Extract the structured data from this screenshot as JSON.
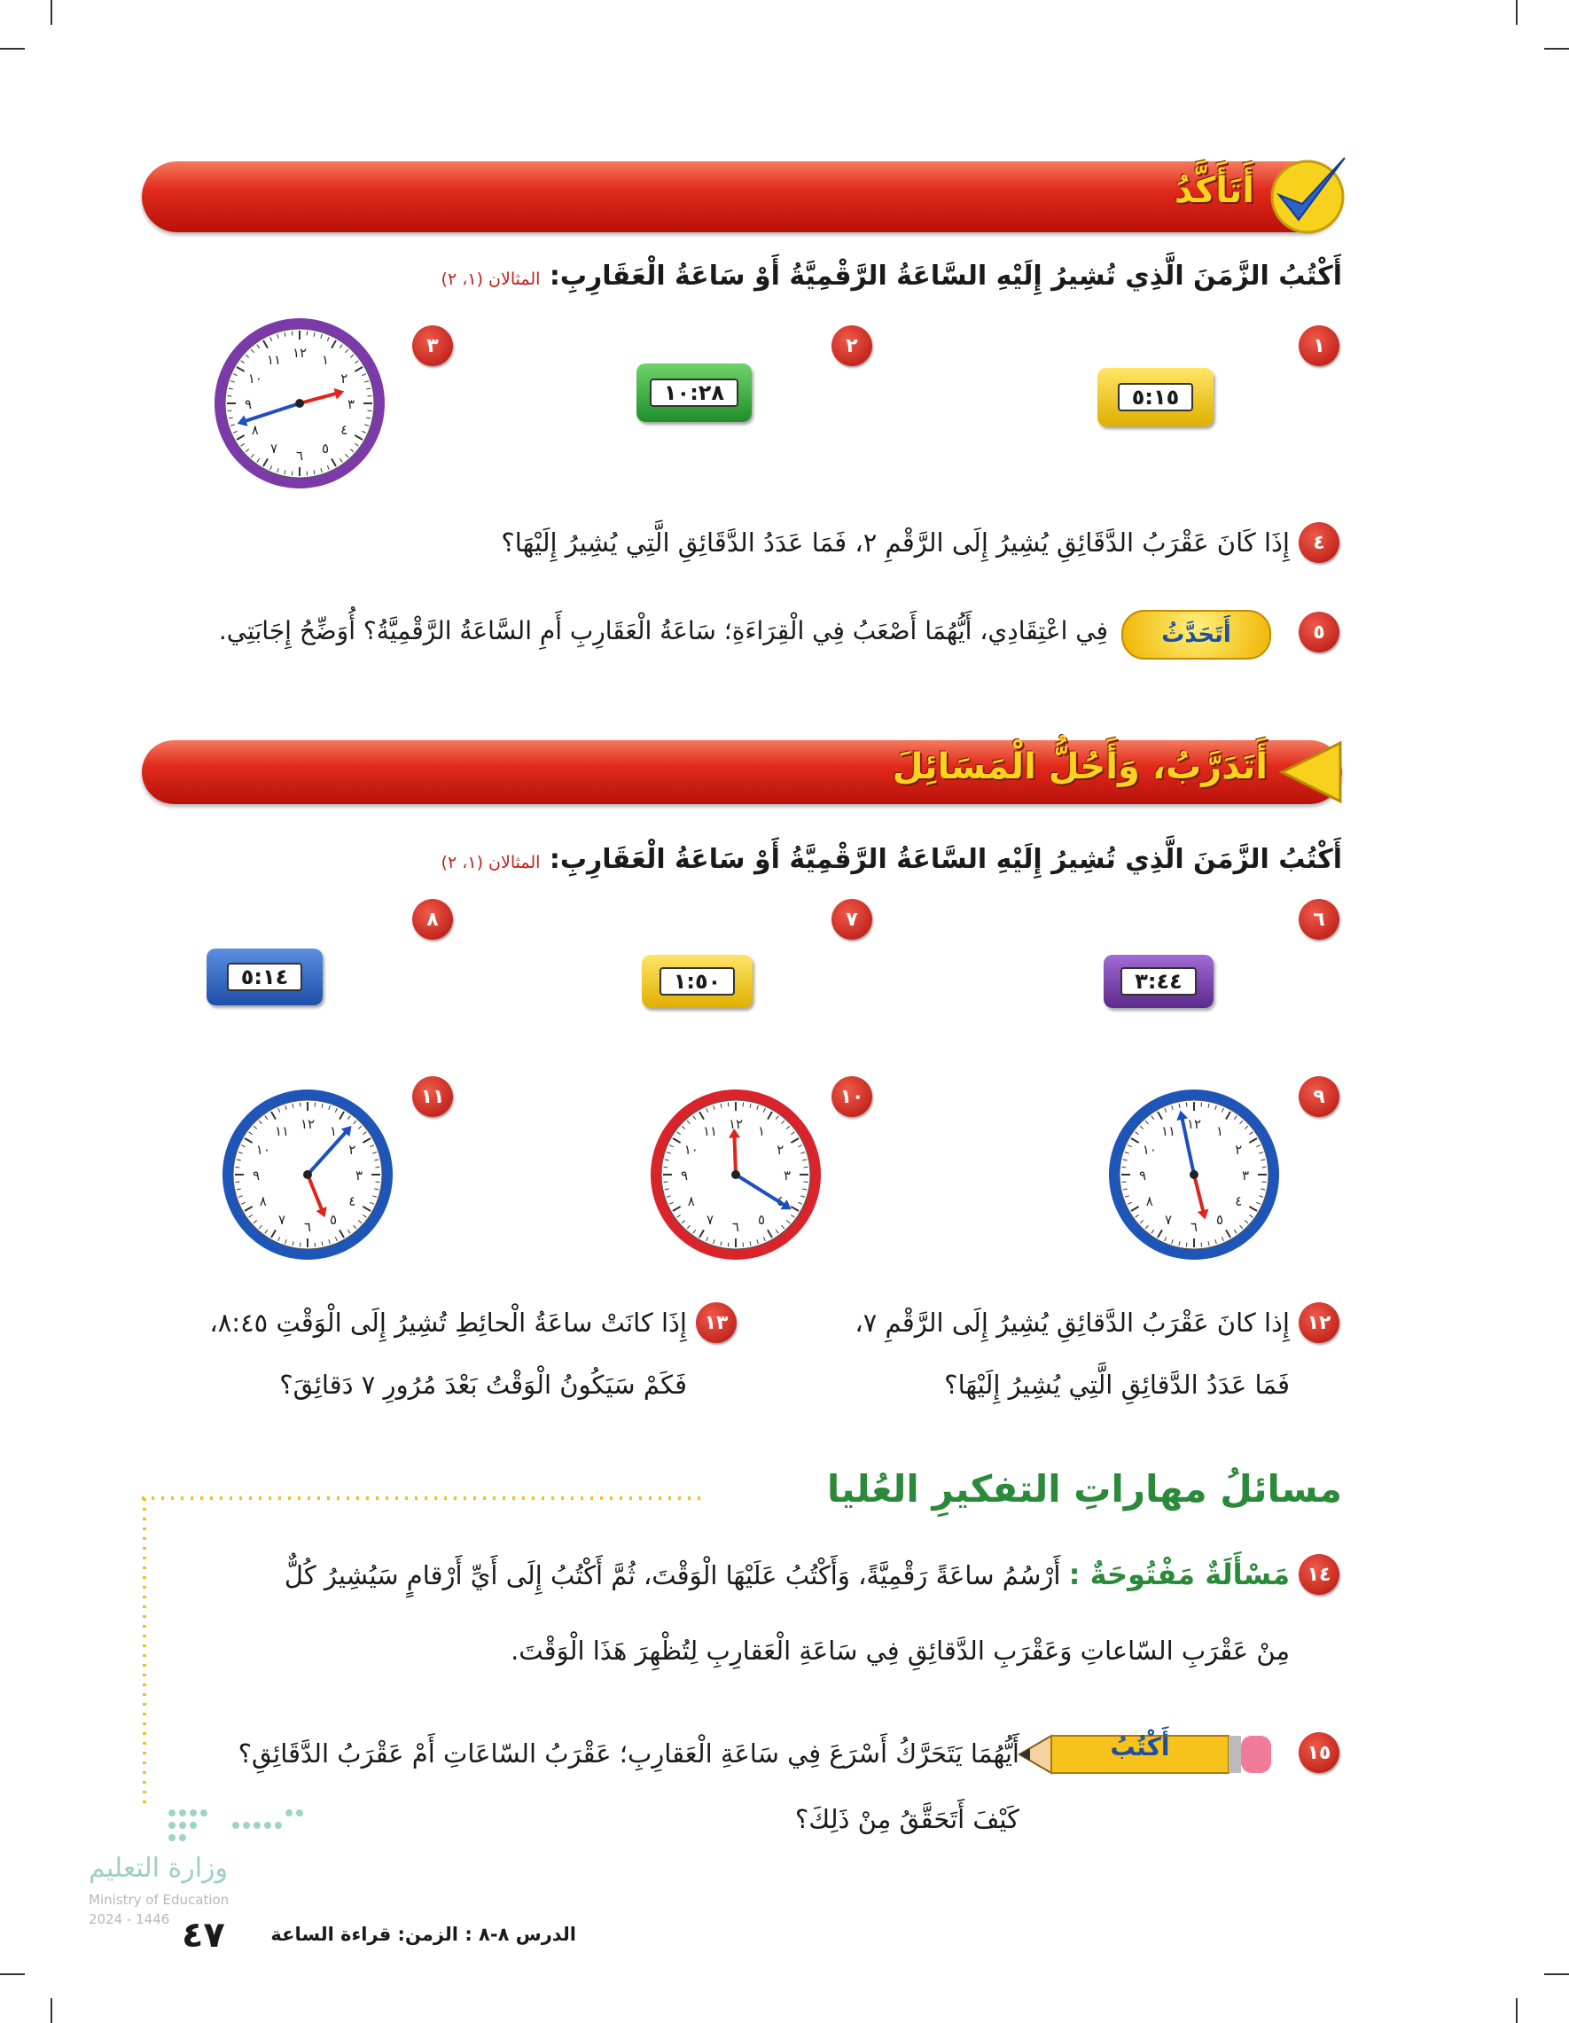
{
  "check": {
    "title": "أَتَأَكَّدُ",
    "instruction": "أَكْتُبُ الزَّمَنَ الَّذِي تُشِيرُ إِلَيْهِ السَّاعَةُ الرَّقْمِيَّةُ أَوْ سَاعَةُ الْعَقَارِبِ:",
    "reference": "المثالان (١، ٢)",
    "problems": [
      {
        "number": "١",
        "clock": "٥:١٥"
      },
      {
        "number": "٢",
        "clock": "١٠:٢٨"
      },
      {
        "number": "٣"
      }
    ],
    "q4": {
      "number": "٤",
      "text": "إِذَا كَانَ عَقْرَبُ الدَّقَائِقِ يُشِيرُ إِلَى الرَّقْمِ ٢، فَمَا عَدَدُ الدَّقَائِقِ الَّتِي يُشِيرُ إِلَيْهَا؟"
    },
    "q5": {
      "number": "٥",
      "tag": "أَتَحَدَّثُ",
      "text": "فِي اعْتِقَادِي، أَيُّهُمَا أَصْعَبُ فِي الْقِرَاءَةِ؛ سَاعَةُ الْعَقَارِبِ أَمِ السَّاعَةُ الرَّقْمِيَّةُ؟ أُوَضِّحُ إِجَابَتِي."
    }
  },
  "practice": {
    "title": "أَتَدَرَّبُ، وَأَحُلُّ الْمَسَائِلَ",
    "instruction": "أَكْتُبُ الزَّمَنَ الَّذِي تُشِيرُ إِلَيْهِ السَّاعَةُ الرَّقْمِيَّةُ أَوْ سَاعَةُ الْعَقَارِبِ:",
    "reference": "المثالان (١، ٢)",
    "problems": [
      {
        "number": "٦",
        "clock": "٣:٤٤"
      },
      {
        "number": "٧",
        "clock": "١:٥٠"
      },
      {
        "number": "٨",
        "clock": "٥:١٤"
      },
      {
        "number": "٩"
      },
      {
        "number": "١٠"
      },
      {
        "number": "١١"
      }
    ],
    "q12": {
      "number": "١٢",
      "lines": [
        "إِذا كانَ عَقْرَبُ الدَّقائِقِ يُشِيرُ إِلَى الرَّقْمِ ٧،",
        "فَمَا عَدَدُ الدَّقائِقِ الَّتِي يُشِيرُ إِلَيْهَا؟"
      ]
    },
    "q13": {
      "number": "١٣",
      "lines": [
        "إِذَا كانَتْ ساعَةُ الْحائِطِ تُشِيرُ إِلَى الْوَقْتِ ٨:٤٥،",
        "فَكَمْ سَيَكُونُ الْوَقْتُ بَعْدَ مُرُورِ ٧ دَقائِقَ؟"
      ]
    }
  },
  "hots": {
    "title_prefix": "مسائلُ",
    "title": "مهاراتِ التفكيرِ العُليا",
    "q14": {
      "number": "١٤",
      "label": "مَسْأَلَةٌ مَفْتُوحَةٌ :",
      "lines": [
        "أَرْسُمُ ساعَةً رَقْمِيَّةً، وَأَكْتُبُ عَلَيْهَا الْوَقْتَ، ثُمَّ أَكْتُبُ إِلَى أَيِّ أَرْقامٍ سَيُشِيرُ كُلٌّ",
        "مِنْ عَقْرَبِ السّاعاتِ وَعَقْرَبِ الدَّقائِقِ فِي سَاعَةِ الْعَقارِبِ لِتُظْهِرَ هَذَا الْوَقْتَ."
      ]
    },
    "q15": {
      "number": "١٥",
      "tag": "أَكْتُبُ",
      "lines": [
        "أَيُّهُمَا يَتَحَرَّكُ أَسْرَعَ فِي سَاعَةِ الْعَقارِبِ؛ عَقْرَبُ السّاعَاتِ أَمْ عَقْرَبُ الدَّقَائِقِ؟",
        "كَيْفَ أَتَحَقَّقُ مِنْ ذَلِكَ؟"
      ]
    }
  },
  "clock_numerals": [
    "١٢",
    "١",
    "٢",
    "٣",
    "٤",
    "٥",
    "٦",
    "٧",
    "٨",
    "٩",
    "١٠",
    "١١"
  ],
  "footer": {
    "lesson": "الدرس ٨-٨ :",
    "title": "الزمن: قراءة الساعة",
    "page": "٤٧"
  },
  "watermark": [
    "وزارة التعليم",
    "Ministry of Education",
    "2024 - 1446"
  ]
}
